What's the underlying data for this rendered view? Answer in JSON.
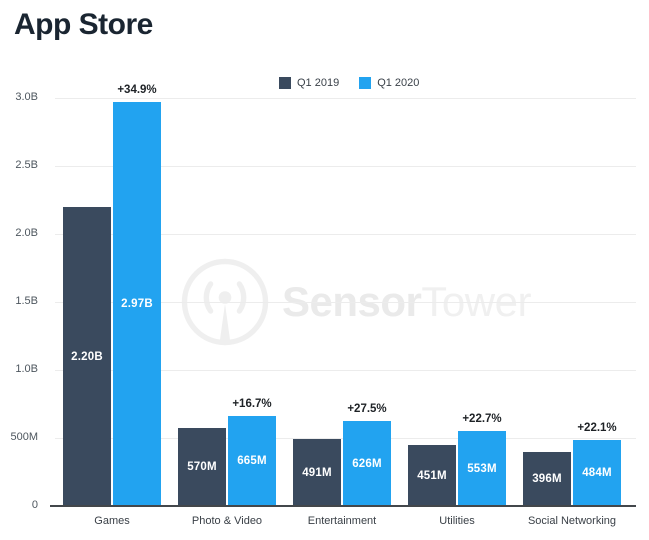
{
  "title": "App Store",
  "legend": [
    {
      "label": "Q1 2019",
      "color": "#3A4A5E"
    },
    {
      "label": "Q1 2020",
      "color": "#22A3F0"
    }
  ],
  "watermark": {
    "bold": "Sensor",
    "light": "Tower"
  },
  "colors": {
    "q1_2019_bar": "#3A4A5E",
    "q1_2020_bar": "#22A3F0",
    "gridline": "#ececec",
    "baseline": "#43474b",
    "watermark_gray": "#efefef"
  },
  "chart_data": {
    "type": "bar",
    "title": "App Store",
    "categories": [
      "Games",
      "Photo & Video",
      "Entertainment",
      "Utilities",
      "Social Networking"
    ],
    "series": [
      {
        "name": "Q1 2019",
        "color": "#3A4A5E",
        "values": [
          2200000000,
          570000000,
          491000000,
          451000000,
          396000000
        ],
        "labels": [
          "2.20B",
          "570M",
          "491M",
          "451M",
          "396M"
        ]
      },
      {
        "name": "Q1 2020",
        "color": "#22A3F0",
        "values": [
          2970000000,
          665000000,
          626000000,
          553000000,
          484000000
        ],
        "labels": [
          "2.97B",
          "665M",
          "626M",
          "553M",
          "484M"
        ]
      }
    ],
    "pct_change_labels": [
      "+34.9%",
      "+16.7%",
      "+27.5%",
      "+22.7%",
      "+22.1%"
    ],
    "y_ticks": [
      "3.0B",
      "2.5B",
      "2.0B",
      "1.5B",
      "1.0B",
      "500M",
      "0"
    ],
    "ylim": [
      0,
      3000000000
    ],
    "grid": true,
    "legend_position": "top"
  }
}
